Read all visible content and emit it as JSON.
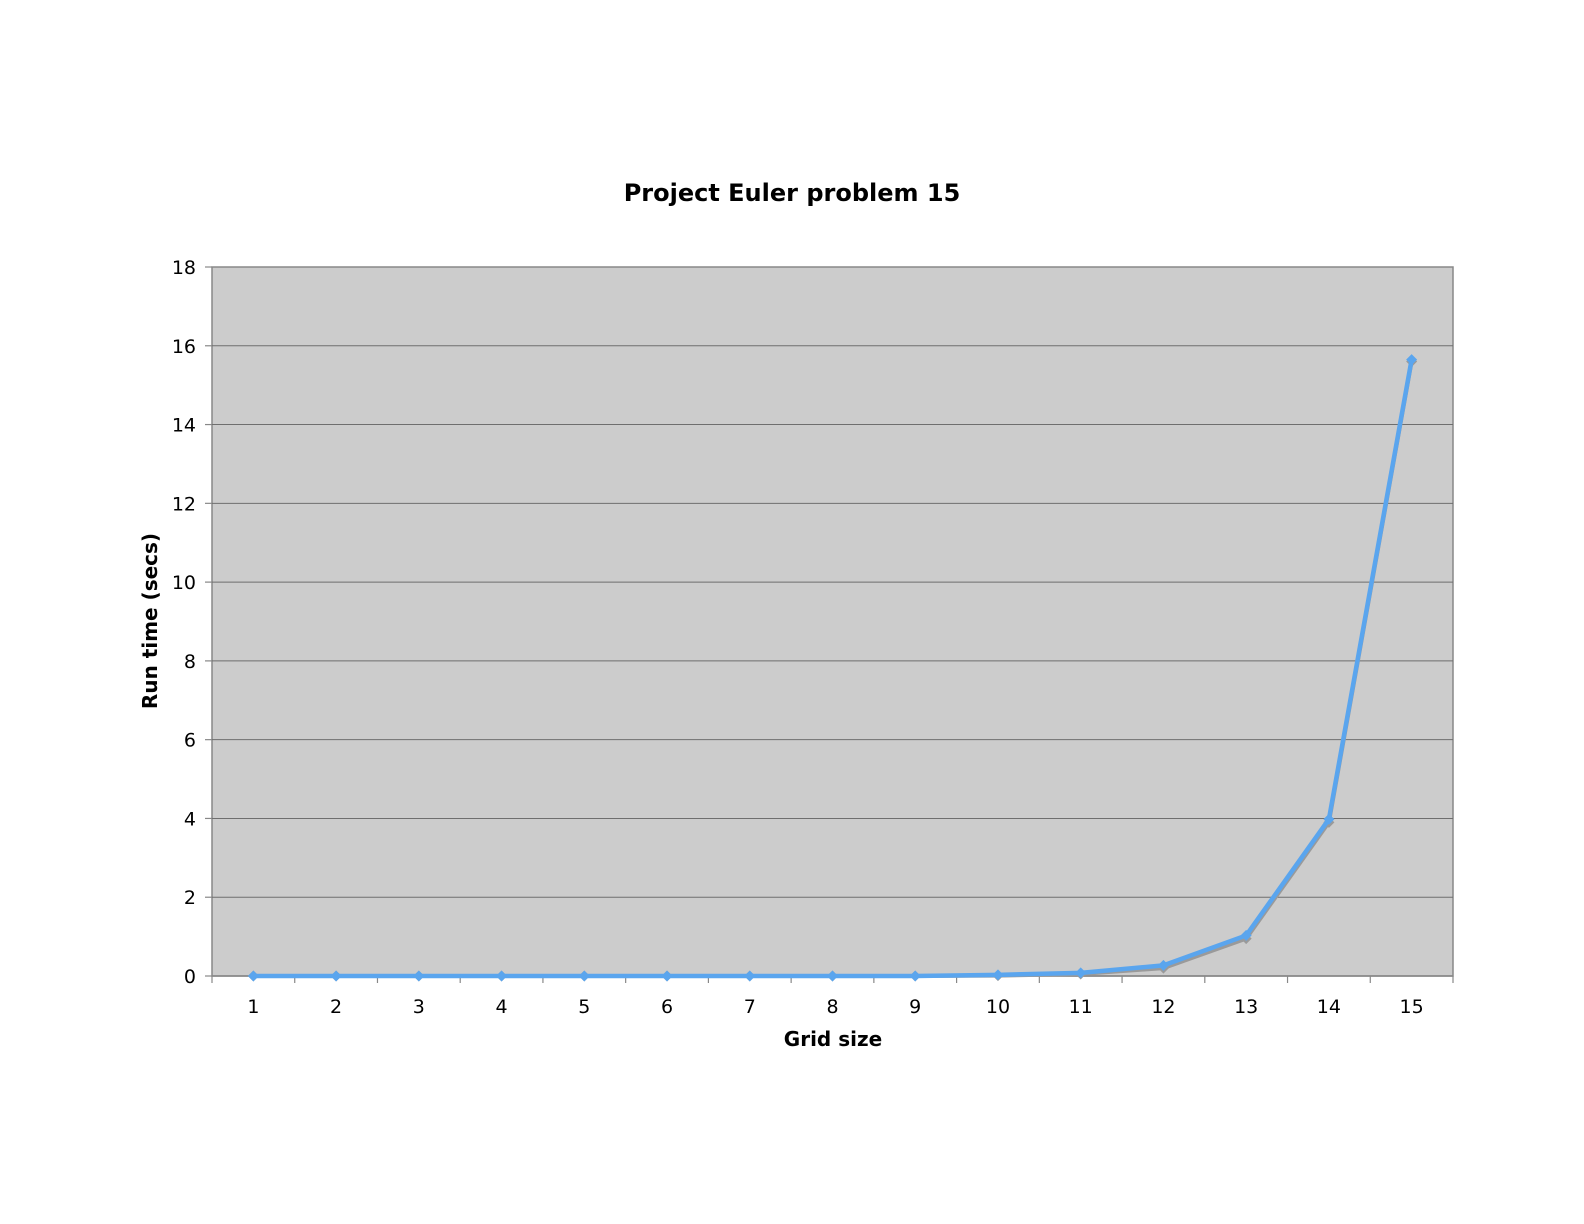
{
  "chart_data": {
    "type": "line",
    "title": "Project Euler problem 15",
    "xlabel": "Grid size",
    "ylabel": "Run time (secs)",
    "categories": [
      "1",
      "2",
      "3",
      "4",
      "5",
      "6",
      "7",
      "8",
      "9",
      "10",
      "11",
      "12",
      "13",
      "14",
      "15"
    ],
    "ylim": [
      0,
      18
    ],
    "yticks": [
      0,
      2,
      4,
      6,
      8,
      10,
      12,
      14,
      16,
      18
    ],
    "grid": true,
    "legend": "none",
    "series": [
      {
        "color": "#9a9a9a",
        "marker": "diamond",
        "values": [
          0,
          0,
          0,
          0,
          0,
          0,
          0,
          0,
          0,
          0.01,
          0.05,
          0.2,
          0.95,
          3.9,
          15.6
        ]
      },
      {
        "color": "#5aa5ee",
        "marker": "diamond",
        "values": [
          0,
          0,
          0,
          0,
          0,
          0,
          0,
          0,
          0,
          0.03,
          0.08,
          0.27,
          1.03,
          3.98,
          15.65
        ]
      }
    ],
    "plot_background": "#cccccc",
    "gridline_color": "#6e6e6e"
  }
}
